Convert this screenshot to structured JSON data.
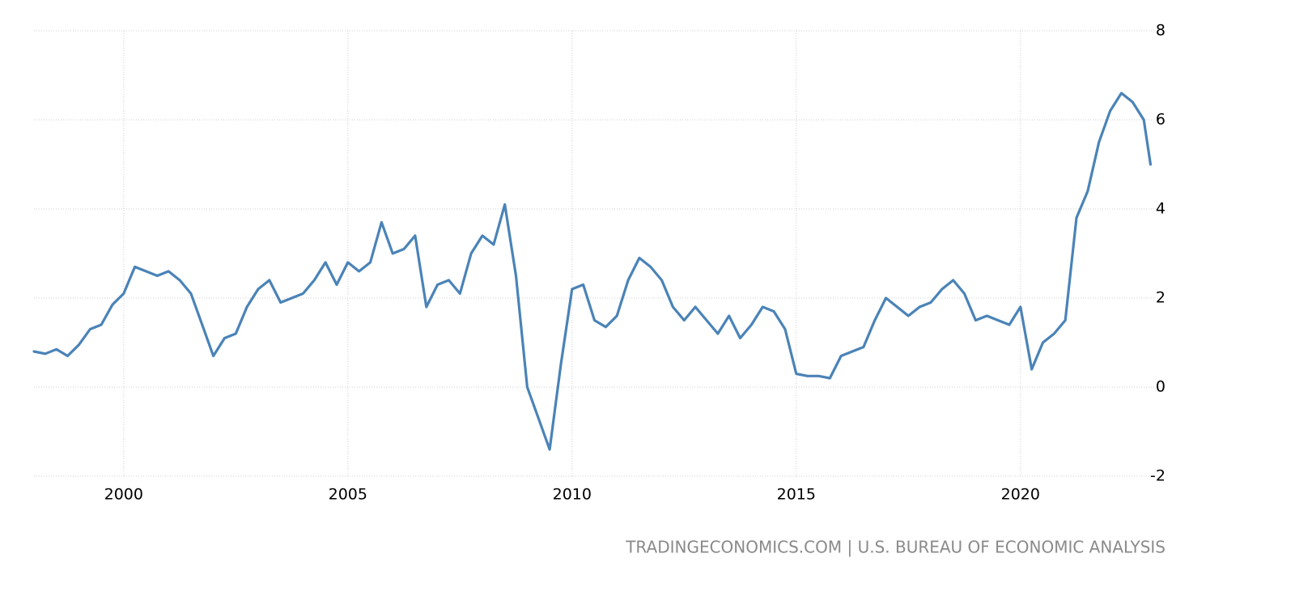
{
  "chart_data": {
    "type": "line",
    "source": "TRADINGECONOMICS.COM | U.S. BUREAU OF ECONOMIC ANALYSIS",
    "x": [
      1998.0,
      1998.25,
      1998.5,
      1998.75,
      1999.0,
      1999.25,
      1999.5,
      1999.75,
      2000.0,
      2000.25,
      2000.5,
      2000.75,
      2001.0,
      2001.25,
      2001.5,
      2001.75,
      2002.0,
      2002.25,
      2002.5,
      2002.75,
      2003.0,
      2003.25,
      2003.5,
      2003.75,
      2004.0,
      2004.25,
      2004.5,
      2004.75,
      2005.0,
      2005.25,
      2005.5,
      2005.75,
      2006.0,
      2006.25,
      2006.5,
      2006.75,
      2007.0,
      2007.25,
      2007.5,
      2007.75,
      2008.0,
      2008.25,
      2008.5,
      2008.75,
      2009.0,
      2009.25,
      2009.5,
      2009.75,
      2010.0,
      2010.25,
      2010.5,
      2010.75,
      2011.0,
      2011.25,
      2011.5,
      2011.75,
      2012.0,
      2012.25,
      2012.5,
      2012.75,
      2013.0,
      2013.25,
      2013.5,
      2013.75,
      2014.0,
      2014.25,
      2014.5,
      2014.75,
      2015.0,
      2015.25,
      2015.5,
      2015.75,
      2016.0,
      2016.25,
      2016.5,
      2016.75,
      2017.0,
      2017.25,
      2017.5,
      2017.75,
      2018.0,
      2018.25,
      2018.5,
      2018.75,
      2019.0,
      2019.25,
      2019.5,
      2019.75,
      2020.0,
      2020.25,
      2020.5,
      2020.75,
      2021.0,
      2021.25,
      2021.5,
      2021.75,
      2022.0,
      2022.25,
      2022.5,
      2022.75,
      2022.9
    ],
    "series": [
      {
        "color": "#4a83b7",
        "values": [
          0.8,
          0.75,
          0.85,
          0.7,
          0.95,
          1.3,
          1.4,
          1.85,
          2.1,
          2.7,
          2.6,
          2.5,
          2.6,
          2.4,
          2.1,
          1.4,
          0.7,
          1.1,
          1.2,
          1.8,
          2.2,
          2.4,
          1.9,
          2.0,
          2.1,
          2.4,
          2.8,
          2.3,
          2.8,
          2.6,
          2.8,
          3.7,
          3.0,
          3.1,
          3.4,
          1.8,
          2.3,
          2.4,
          2.1,
          3.0,
          3.4,
          3.2,
          4.1,
          2.5,
          0.0,
          -0.7,
          -1.4,
          0.5,
          2.2,
          2.3,
          1.5,
          1.35,
          1.6,
          2.4,
          2.9,
          2.7,
          2.4,
          1.8,
          1.5,
          1.8,
          1.5,
          1.2,
          1.6,
          1.1,
          1.4,
          1.8,
          1.7,
          1.3,
          0.3,
          0.25,
          0.25,
          0.2,
          0.7,
          0.8,
          0.9,
          1.5,
          2.0,
          1.8,
          1.6,
          1.8,
          1.9,
          2.2,
          2.4,
          2.1,
          1.5,
          1.6,
          1.5,
          1.4,
          1.8,
          0.4,
          1.0,
          1.2,
          1.5,
          3.8,
          4.4,
          5.5,
          6.2,
          6.6,
          6.4,
          6.0,
          5.0
        ]
      }
    ],
    "xlim": [
      1998,
      2023
    ],
    "xticks": [
      2000,
      2005,
      2010,
      2015,
      2020
    ],
    "ylim": [
      -2,
      8
    ],
    "yticks": [
      -2,
      0,
      2,
      4,
      6,
      8
    ],
    "grid": true
  }
}
